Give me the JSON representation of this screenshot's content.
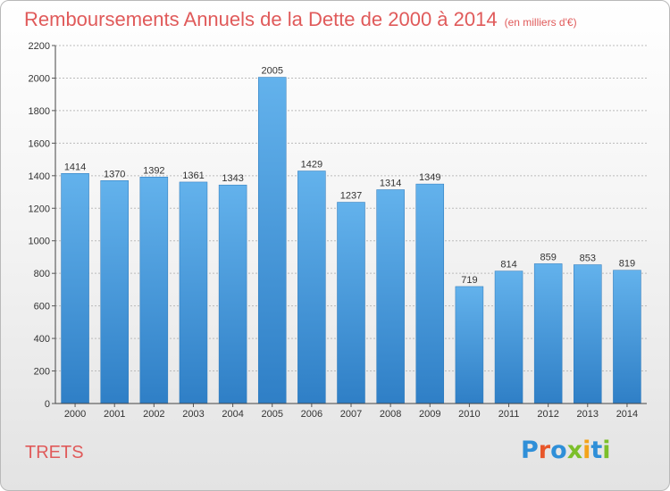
{
  "title": "Remboursements Annuels de la Dette de 2000 à 2014",
  "unit_note": "(en milliers d'€)",
  "commune": "TRETS",
  "logo": {
    "text": "Proxiti"
  },
  "colors": {
    "title": "#e05a5a",
    "bar_top": "#63b2ec",
    "bar_bottom": "#2f7fc6",
    "grid": "#bbbbbb"
  },
  "chart_data": {
    "type": "bar",
    "title": "Remboursements Annuels de la Dette de 2000 à 2014",
    "subtitle": "(en milliers d'€)",
    "xlabel": "",
    "ylabel": "",
    "categories": [
      "2000",
      "2001",
      "2002",
      "2003",
      "2004",
      "2005",
      "2006",
      "2007",
      "2008",
      "2009",
      "2010",
      "2011",
      "2012",
      "2013",
      "2014"
    ],
    "values": [
      1414,
      1370,
      1392,
      1361,
      1343,
      2005,
      1429,
      1237,
      1314,
      1349,
      719,
      814,
      859,
      853,
      819
    ],
    "ylim": [
      0,
      2200
    ],
    "yticks": [
      0,
      200,
      400,
      600,
      800,
      1000,
      1200,
      1400,
      1600,
      1800,
      2000,
      2200
    ],
    "grid": true,
    "legend": "none"
  }
}
